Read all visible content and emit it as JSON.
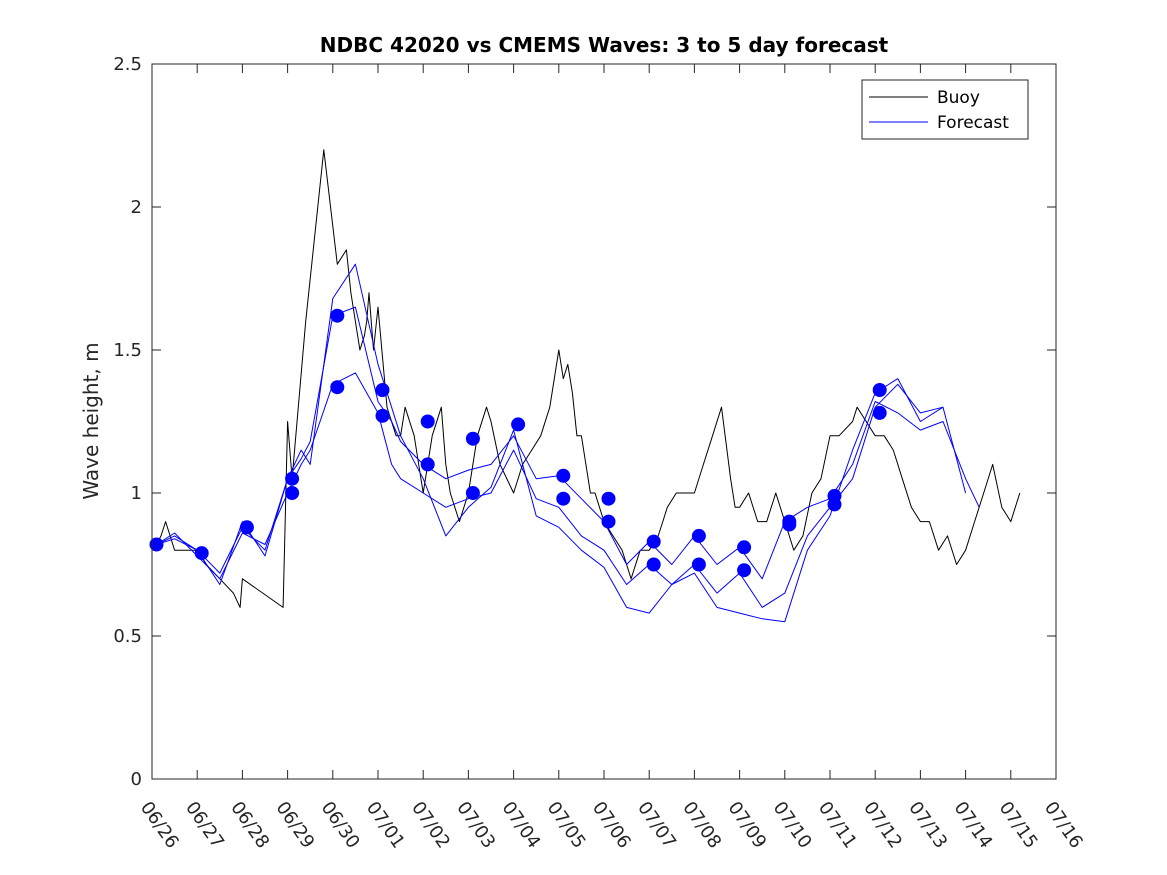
{
  "chart_data": {
    "type": "line",
    "title": "NDBC 42020 vs CMEMS Waves: 3 to 5 day forecast",
    "xlabel": "",
    "ylabel": "Wave height, m",
    "x_tick_labels": [
      "06/26",
      "06/27",
      "06/28",
      "06/29",
      "06/30",
      "07/01",
      "07/02",
      "07/03",
      "07/04",
      "07/05",
      "07/06",
      "07/07",
      "07/08",
      "07/09",
      "07/10",
      "07/11",
      "07/12",
      "07/13",
      "07/14",
      "07/15",
      "07/16"
    ],
    "y_ticks": [
      0,
      0.5,
      1,
      1.5,
      2,
      2.5
    ],
    "y_tick_labels": [
      "0",
      "0.5",
      "1",
      "1.5",
      "2",
      "2.5"
    ],
    "xlim": [
      0,
      20
    ],
    "ylim": [
      0,
      2.5
    ],
    "legend_position": "top-right",
    "colors": {
      "buoy": "#000000",
      "forecast": "#0000ff"
    },
    "series": [
      {
        "name": "Buoy",
        "color": "#000000",
        "x": [
          0.1,
          0.2,
          0.3,
          0.4,
          0.5,
          1.0,
          1.2,
          1.5,
          1.8,
          1.95,
          2.0,
          2.9,
          3.0,
          3.1,
          3.4,
          3.8,
          4.1,
          4.3,
          4.4,
          4.5,
          4.6,
          4.7,
          4.75,
          4.8,
          4.9,
          5.0,
          5.2,
          5.4,
          5.5,
          5.6,
          5.8,
          5.9,
          6.0,
          6.2,
          6.4,
          6.5,
          6.6,
          6.8,
          7.0,
          7.2,
          7.4,
          7.5,
          7.7,
          8.0,
          8.2,
          8.4,
          8.6,
          8.8,
          9.0,
          9.1,
          9.2,
          9.3,
          9.4,
          9.5,
          9.6,
          9.7,
          9.8,
          9.9,
          10.0,
          10.2,
          10.4,
          10.5,
          10.6,
          10.8,
          11.0,
          11.2,
          11.3,
          11.4,
          11.6,
          11.8,
          12.0,
          12.2,
          12.4,
          12.6,
          12.8,
          12.9,
          13.0,
          13.2,
          13.4,
          13.6,
          13.8,
          14.0,
          14.2,
          14.4,
          14.6,
          14.8,
          15.0,
          15.2,
          15.5,
          15.6,
          15.8,
          16.0,
          16.2,
          16.4,
          16.6,
          16.8,
          17.0,
          17.2,
          17.4,
          17.6,
          17.8,
          18.0,
          18.2,
          18.4,
          18.6,
          18.8,
          19.0,
          19.2
        ],
        "values": [
          0.82,
          0.85,
          0.9,
          0.85,
          0.8,
          0.8,
          0.75,
          0.7,
          0.65,
          0.6,
          0.7,
          0.6,
          1.25,
          1.05,
          1.6,
          2.2,
          1.8,
          1.85,
          1.7,
          1.6,
          1.5,
          1.55,
          1.6,
          1.7,
          1.5,
          1.65,
          1.3,
          1.2,
          1.2,
          1.3,
          1.2,
          1.1,
          1.0,
          1.2,
          1.3,
          1.1,
          1.0,
          0.9,
          1.0,
          1.2,
          1.3,
          1.25,
          1.1,
          1.0,
          1.1,
          1.15,
          1.2,
          1.3,
          1.5,
          1.4,
          1.45,
          1.35,
          1.2,
          1.2,
          1.1,
          1.0,
          1.0,
          0.95,
          0.9,
          0.85,
          0.8,
          0.75,
          0.7,
          0.8,
          0.8,
          0.85,
          0.9,
          0.95,
          1.0,
          1.0,
          1.0,
          1.1,
          1.2,
          1.3,
          1.05,
          0.95,
          0.95,
          1.0,
          0.9,
          0.9,
          1.0,
          0.9,
          0.8,
          0.85,
          1.0,
          1.05,
          1.2,
          1.2,
          1.25,
          1.3,
          1.25,
          1.2,
          1.2,
          1.15,
          1.05,
          0.95,
          0.9,
          0.9,
          0.8,
          0.85,
          0.75,
          0.8,
          0.9,
          1.0,
          1.1,
          0.95,
          0.9,
          1.0
        ]
      },
      {
        "name": "Forecast",
        "color": "#0000ff",
        "x": [
          0.1,
          0.5,
          1.0,
          1.5,
          2.0,
          2.5,
          3.0,
          3.3,
          3.5,
          4.0,
          4.5,
          5.0,
          5.3,
          5.5,
          6.0,
          6.5,
          7.0,
          7.5,
          8.0,
          8.5,
          9.0,
          9.5,
          10.0,
          10.5,
          11.0,
          11.5,
          12.0,
          12.5,
          13.0,
          13.5,
          14.0,
          14.5,
          15.0,
          15.5,
          16.0,
          16.5,
          17.0,
          17.5,
          18.0,
          18.3
        ],
        "values": [
          0.82,
          0.85,
          0.8,
          0.72,
          0.88,
          0.8,
          1.05,
          1.12,
          1.18,
          1.62,
          1.65,
          1.32,
          1.25,
          1.18,
          1.1,
          1.05,
          1.08,
          1.1,
          1.2,
          1.05,
          1.06,
          0.98,
          0.9,
          0.75,
          0.83,
          0.75,
          0.85,
          0.75,
          0.81,
          0.7,
          0.9,
          0.95,
          0.98,
          1.1,
          1.32,
          1.28,
          1.22,
          1.25,
          1.05,
          0.95
        ]
      },
      {
        "name": "Forecast",
        "color": "#0000ff",
        "x": [
          0.1,
          0.5,
          1.0,
          1.5,
          2.0,
          2.5,
          3.0,
          3.3,
          3.5,
          4.0,
          4.5,
          5.0,
          5.3,
          5.5,
          6.0,
          6.5,
          7.0,
          7.5,
          8.0,
          8.5,
          9.0,
          9.5,
          10.0,
          10.5,
          11.0,
          11.5,
          12.0,
          12.5,
          13.0,
          13.5,
          14.0,
          14.5,
          15.0,
          15.5,
          16.0,
          16.5,
          17.0,
          17.5
        ],
        "values": [
          0.82,
          0.86,
          0.78,
          0.7,
          0.86,
          0.82,
          1.0,
          1.1,
          1.15,
          1.38,
          1.42,
          1.28,
          1.1,
          1.05,
          1.0,
          0.95,
          0.98,
          1.0,
          1.15,
          0.98,
          0.95,
          0.85,
          0.8,
          0.68,
          0.75,
          0.68,
          0.75,
          0.65,
          0.72,
          0.6,
          0.65,
          0.85,
          0.95,
          1.05,
          1.3,
          1.38,
          1.28,
          1.3
        ]
      },
      {
        "name": "Forecast",
        "color": "#0000ff",
        "x": [
          0.1,
          0.5,
          1.0,
          1.5,
          2.0,
          2.5,
          3.0,
          3.3,
          3.5,
          4.0,
          4.5,
          5.0,
          5.3,
          5.5,
          6.0,
          6.5,
          7.0,
          7.5,
          8.0,
          8.5,
          9.0,
          9.5,
          10.0,
          10.5,
          11.0,
          11.5,
          12.0,
          12.5,
          13.0,
          13.5,
          14.0,
          14.5,
          15.0,
          15.5,
          16.0,
          16.5,
          17.0,
          17.5,
          18.0
        ],
        "values": [
          0.82,
          0.84,
          0.8,
          0.68,
          0.9,
          0.78,
          1.05,
          1.15,
          1.1,
          1.68,
          1.8,
          1.45,
          1.3,
          1.2,
          1.05,
          0.85,
          0.95,
          1.02,
          1.22,
          0.92,
          0.88,
          0.8,
          0.74,
          0.6,
          0.58,
          0.68,
          0.72,
          0.6,
          0.58,
          0.56,
          0.55,
          0.8,
          0.92,
          1.15,
          1.35,
          1.4,
          1.25,
          1.3,
          1.0
        ]
      }
    ],
    "markers": {
      "color": "#0000ff",
      "x": [
        0.1,
        1.1,
        2.1,
        3.1,
        3.1,
        4.1,
        4.1,
        5.1,
        5.1,
        6.1,
        6.1,
        7.1,
        7.1,
        8.1,
        9.1,
        9.1,
        10.1,
        10.1,
        11.1,
        11.1,
        12.1,
        12.1,
        13.1,
        13.1,
        14.1,
        14.1,
        15.1,
        15.1,
        16.1,
        16.1
      ],
      "values": [
        0.82,
        0.79,
        0.88,
        1.05,
        1.0,
        1.62,
        1.37,
        1.36,
        1.27,
        1.25,
        1.1,
        1.19,
        1.0,
        1.24,
        1.06,
        0.98,
        0.98,
        0.9,
        0.83,
        0.75,
        0.85,
        0.75,
        0.81,
        0.73,
        0.9,
        0.89,
        0.99,
        0.96,
        1.36,
        1.28
      ]
    },
    "legend": {
      "entries": [
        "Buoy",
        "Forecast"
      ]
    },
    "grid": false
  }
}
